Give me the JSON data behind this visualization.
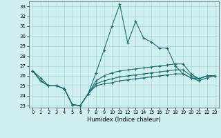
{
  "xlabel": "Humidex (Indice chaleur)",
  "xlim": [
    -0.5,
    23.5
  ],
  "ylim": [
    22.8,
    33.5
  ],
  "yticks": [
    23,
    24,
    25,
    26,
    27,
    28,
    29,
    30,
    31,
    32,
    33
  ],
  "xticks": [
    0,
    1,
    2,
    3,
    4,
    5,
    6,
    7,
    8,
    9,
    10,
    11,
    12,
    13,
    14,
    15,
    16,
    17,
    18,
    19,
    20,
    21,
    22,
    23
  ],
  "background_color": "#cff0ee",
  "grid_color": "#a8d8d8",
  "line_color": "#1a6b6b",
  "lines": [
    [
      26.5,
      25.8,
      25.0,
      25.0,
      24.7,
      23.1,
      23.0,
      24.2,
      26.3,
      28.6,
      31.0,
      33.2,
      29.3,
      31.5,
      29.8,
      29.4,
      28.8,
      28.8,
      27.0,
      26.2,
      25.8,
      25.7,
      26.0,
      26.0
    ],
    [
      26.5,
      25.5,
      25.0,
      25.0,
      24.7,
      23.1,
      23.0,
      24.2,
      25.5,
      26.0,
      26.3,
      26.5,
      26.6,
      26.7,
      26.8,
      26.9,
      27.0,
      27.1,
      27.2,
      27.2,
      26.2,
      25.7,
      26.0,
      26.0
    ],
    [
      26.5,
      25.5,
      25.0,
      25.0,
      24.7,
      23.1,
      23.0,
      24.2,
      25.2,
      25.5,
      25.7,
      25.9,
      26.0,
      26.1,
      26.2,
      26.3,
      26.4,
      26.5,
      26.6,
      26.6,
      26.0,
      25.7,
      26.0,
      26.0
    ],
    [
      26.5,
      25.5,
      25.0,
      25.0,
      24.7,
      23.1,
      23.0,
      24.2,
      25.0,
      25.2,
      25.3,
      25.5,
      25.6,
      25.7,
      25.8,
      25.9,
      26.0,
      26.1,
      26.2,
      26.2,
      25.8,
      25.5,
      25.8,
      26.0
    ]
  ]
}
